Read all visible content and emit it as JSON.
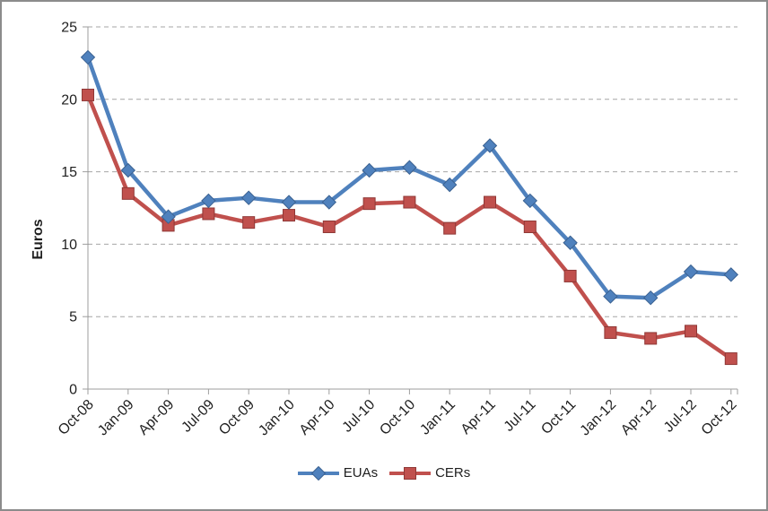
{
  "chart_data": {
    "type": "line",
    "title": "",
    "xlabel": "",
    "ylabel": "Euros",
    "categories": [
      "Oct-08",
      "Jan-09",
      "Apr-09",
      "Jul-09",
      "Oct-09",
      "Jan-10",
      "Apr-10",
      "Jul-10",
      "Oct-10",
      "Jan-11",
      "Apr-11",
      "Jul-11",
      "Oct-11",
      "Jan-12",
      "Apr-12",
      "Jul-12",
      "Oct-12"
    ],
    "series": [
      {
        "name": "EUAs",
        "marker": "diamond",
        "color": "#4F81BD",
        "marker_stroke": "#3A6191",
        "values": [
          22.9,
          15.1,
          11.9,
          13.0,
          13.2,
          12.9,
          12.9,
          15.1,
          15.3,
          14.1,
          16.8,
          13.0,
          10.1,
          6.4,
          6.3,
          8.1,
          7.9
        ]
      },
      {
        "name": "CERs",
        "marker": "square",
        "color": "#C0504D",
        "marker_stroke": "#8F3836",
        "values": [
          20.3,
          13.5,
          11.3,
          12.1,
          11.5,
          12.0,
          11.2,
          12.8,
          12.9,
          11.1,
          12.9,
          11.2,
          7.8,
          3.9,
          3.5,
          4.0,
          2.1
        ]
      }
    ],
    "ylim": [
      0,
      25
    ],
    "yticks": [
      0,
      5,
      10,
      15,
      20,
      25
    ],
    "grid": "horizontal-dashed",
    "grid_color": "#A6A6A6",
    "axis_color": "#9E9E9E",
    "text_color": "#1F1F1F",
    "legend_position": "bottom-center",
    "background": "#FFFFFF",
    "figure_border_color": "#8C8C8C"
  }
}
